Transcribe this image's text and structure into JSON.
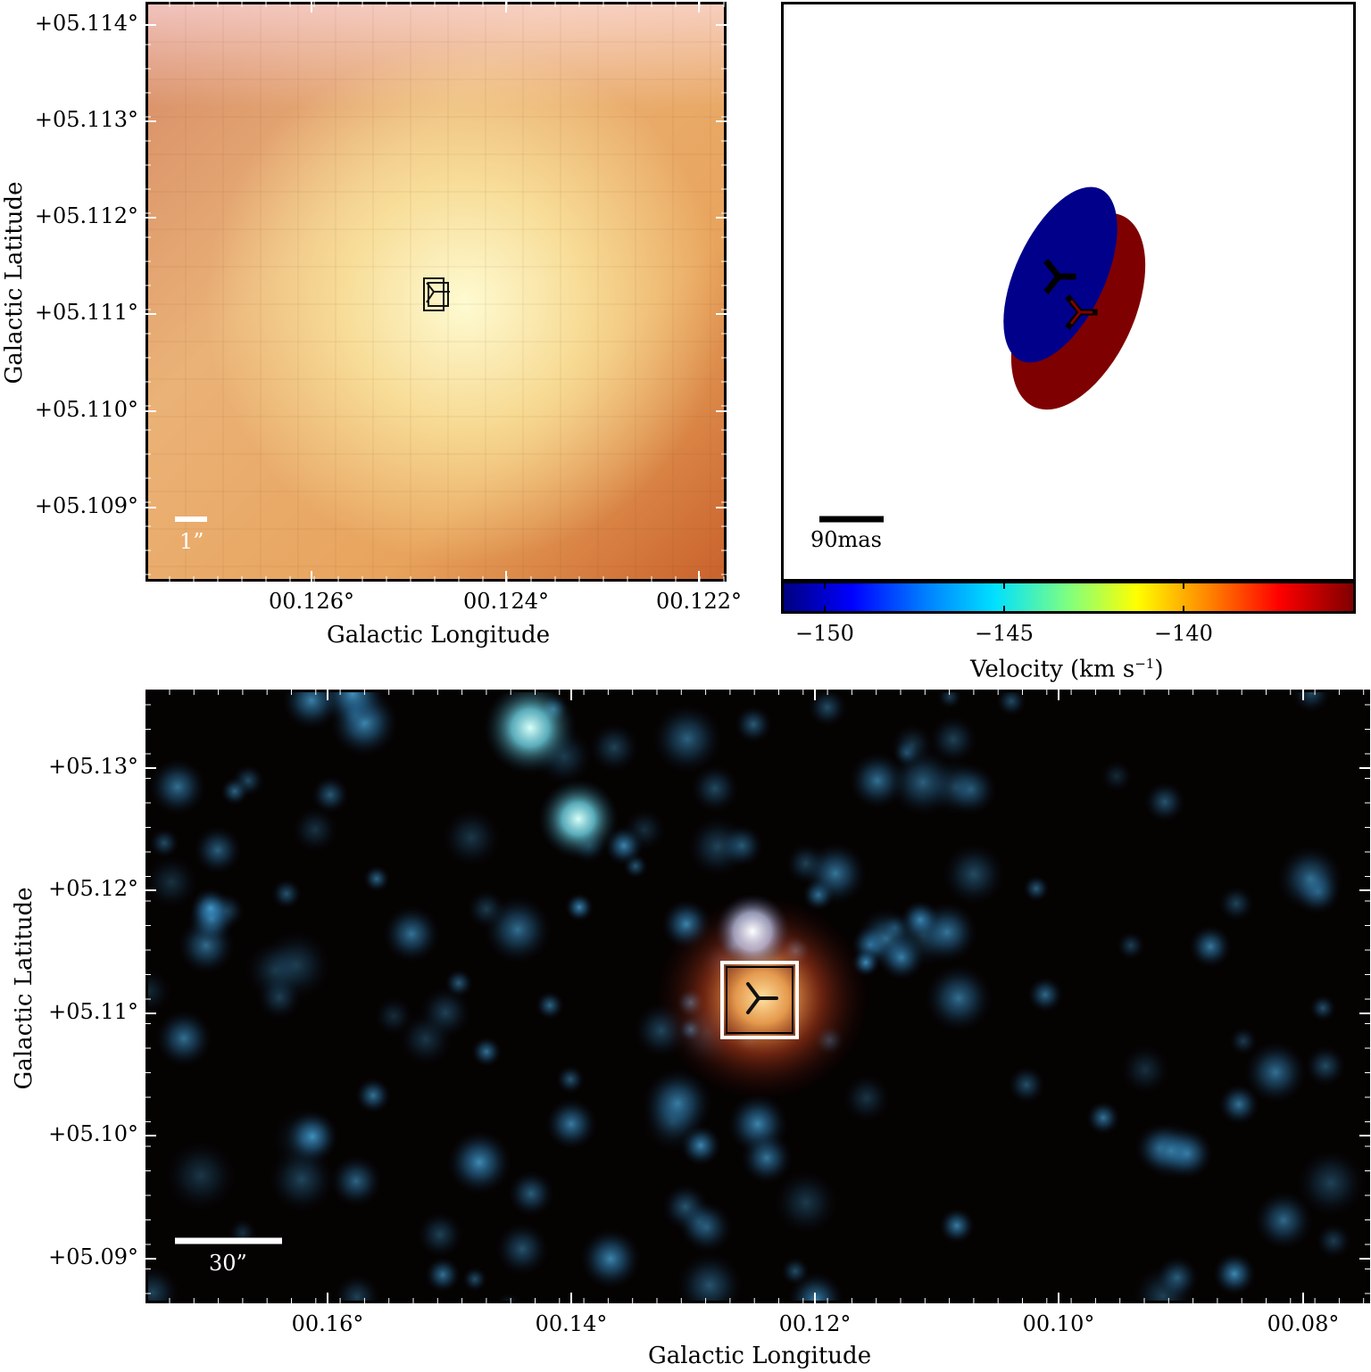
{
  "top_left": {
    "y_ticks": [
      "+05.114°",
      "+05.113°",
      "+05.112°",
      "+05.111°",
      "+05.110°",
      "+05.109°"
    ],
    "x_ticks": [
      "00.126°",
      "00.124°",
      "00.122°"
    ],
    "xlabel": "Galactic Longitude",
    "ylabel": "Galactic Latitude",
    "scale_bar": "1”"
  },
  "top_right": {
    "scale_bar": "90mas",
    "ellipse_colors": [
      "#00008b",
      "#7f0000"
    ]
  },
  "colorbar": {
    "ticks": [
      "−150",
      "−145",
      "−140"
    ],
    "label": "Velocity (km s",
    "label_exp": "−1",
    "label_end": ")",
    "colors": [
      "#000080",
      "#0000ff",
      "#00e0ff",
      "#ffff00",
      "#ff0000",
      "#800000"
    ]
  },
  "bottom": {
    "y_ticks": [
      "+05.13°",
      "+05.12°",
      "+05.11°",
      "+05.10°",
      "+05.09°"
    ],
    "x_ticks": [
      "00.16°",
      "00.14°",
      "00.12°",
      "00.10°",
      "00.08°"
    ],
    "xlabel": "Galactic Longitude",
    "ylabel": "Galactic Latitude",
    "scale_bar": "30”"
  }
}
